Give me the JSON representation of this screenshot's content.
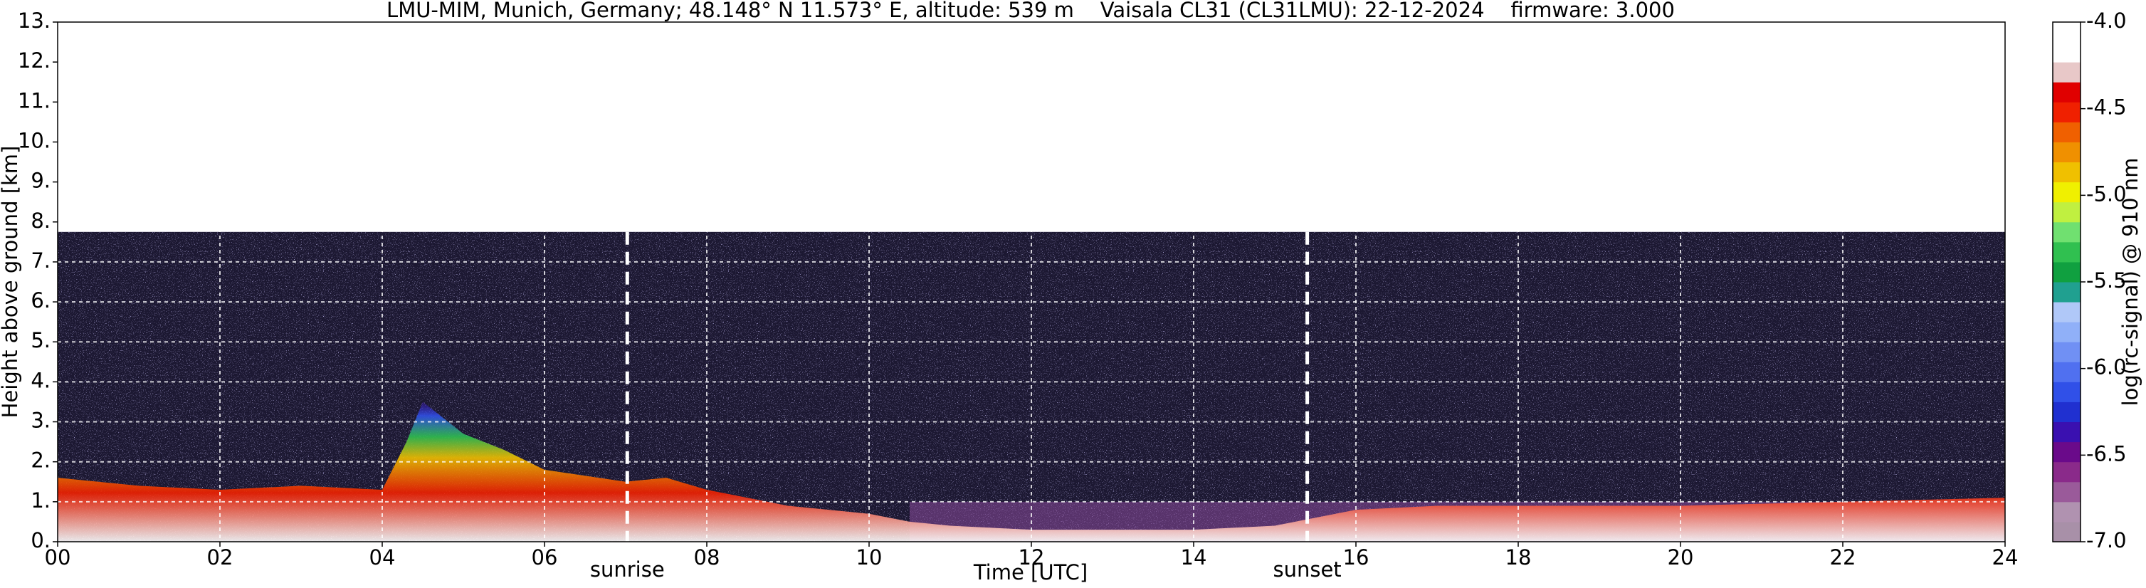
{
  "chart_data": {
    "type": "heatmap",
    "title": "LMU-MIM, Munich, Germany; 48.148° N 11.573° E, altitude: 539 m    Vaisala CL31 (CL31LMU): 22-12-2024    firmware: 3.000",
    "xlabel": "Time [UTC]",
    "ylabel": "Height above ground [km]",
    "colorbar_label": "log(rc-signal) @ 910 nm",
    "xlim": [
      0,
      24
    ],
    "xticks": [
      {
        "value": 0,
        "label": "00"
      },
      {
        "value": 2,
        "label": "02"
      },
      {
        "value": 4,
        "label": "04"
      },
      {
        "value": 6,
        "label": "06"
      },
      {
        "value": 8,
        "label": "08"
      },
      {
        "value": 10,
        "label": "10"
      },
      {
        "value": 12,
        "label": "12"
      },
      {
        "value": 14,
        "label": "14"
      },
      {
        "value": 16,
        "label": "16"
      },
      {
        "value": 18,
        "label": "18"
      },
      {
        "value": 20,
        "label": "20"
      },
      {
        "value": 22,
        "label": "22"
      },
      {
        "value": 24,
        "label": "24"
      }
    ],
    "ylim": [
      0,
      13
    ],
    "yticks": [
      {
        "value": 0,
        "label": "0."
      },
      {
        "value": 1,
        "label": "1."
      },
      {
        "value": 2,
        "label": "2."
      },
      {
        "value": 3,
        "label": "3."
      },
      {
        "value": 4,
        "label": "4."
      },
      {
        "value": 5,
        "label": "5."
      },
      {
        "value": 6,
        "label": "6."
      },
      {
        "value": 7,
        "label": "7."
      },
      {
        "value": 8,
        "label": "8."
      },
      {
        "value": 9,
        "label": "9."
      },
      {
        "value": 10,
        "label": "10."
      },
      {
        "value": 11,
        "label": "11."
      },
      {
        "value": 12,
        "label": "12."
      },
      {
        "value": 13,
        "label": "13."
      }
    ],
    "zlim": [
      -7,
      -4
    ],
    "zticks": [
      {
        "value": -4,
        "label": "-4.0"
      },
      {
        "value": -4.5,
        "label": "-4.5"
      },
      {
        "value": -5,
        "label": "-5.0"
      },
      {
        "value": -5.5,
        "label": "-5.5"
      },
      {
        "value": -6,
        "label": "-6.0"
      },
      {
        "value": -6.5,
        "label": "-6.5"
      },
      {
        "value": -7,
        "label": "-7.0"
      }
    ],
    "colormap": [
      "#a890a8",
      "#b092b0",
      "#9a5a9a",
      "#8a2a8a",
      "#6a0a8a",
      "#3a10b0",
      "#2030d0",
      "#3050e8",
      "#5070f0",
      "#7090f4",
      "#90b0f8",
      "#b0c8f8",
      "#20a090",
      "#10a040",
      "#30c050",
      "#70e070",
      "#c0f040",
      "#f0f000",
      "#f0c000",
      "#f09000",
      "#f06000",
      "#f02000",
      "#e00000",
      "#e8c8c8",
      "#ffffff",
      "#ffffff"
    ],
    "signal_top": 7.75,
    "x": [
      0,
      1,
      2,
      3,
      4,
      4.3,
      4.5,
      5,
      5.5,
      6,
      7,
      7.5,
      8,
      9,
      10,
      10.5,
      11,
      12,
      13,
      14,
      15,
      16,
      17,
      18,
      20,
      22,
      24
    ],
    "values": [
      1.6,
      1.4,
      1.3,
      1.4,
      1.3,
      2.5,
      3.5,
      2.7,
      2.3,
      1.8,
      1.5,
      1.6,
      1.3,
      0.9,
      0.7,
      0.5,
      0.4,
      0.3,
      0.3,
      0.3,
      0.4,
      0.8,
      0.9,
      0.9,
      0.9,
      1.0,
      1.1
    ],
    "annotations": [
      {
        "text": "sunrise",
        "x": 7.02
      },
      {
        "text": "sunset",
        "x": 15.4
      }
    ],
    "grid": true
  }
}
